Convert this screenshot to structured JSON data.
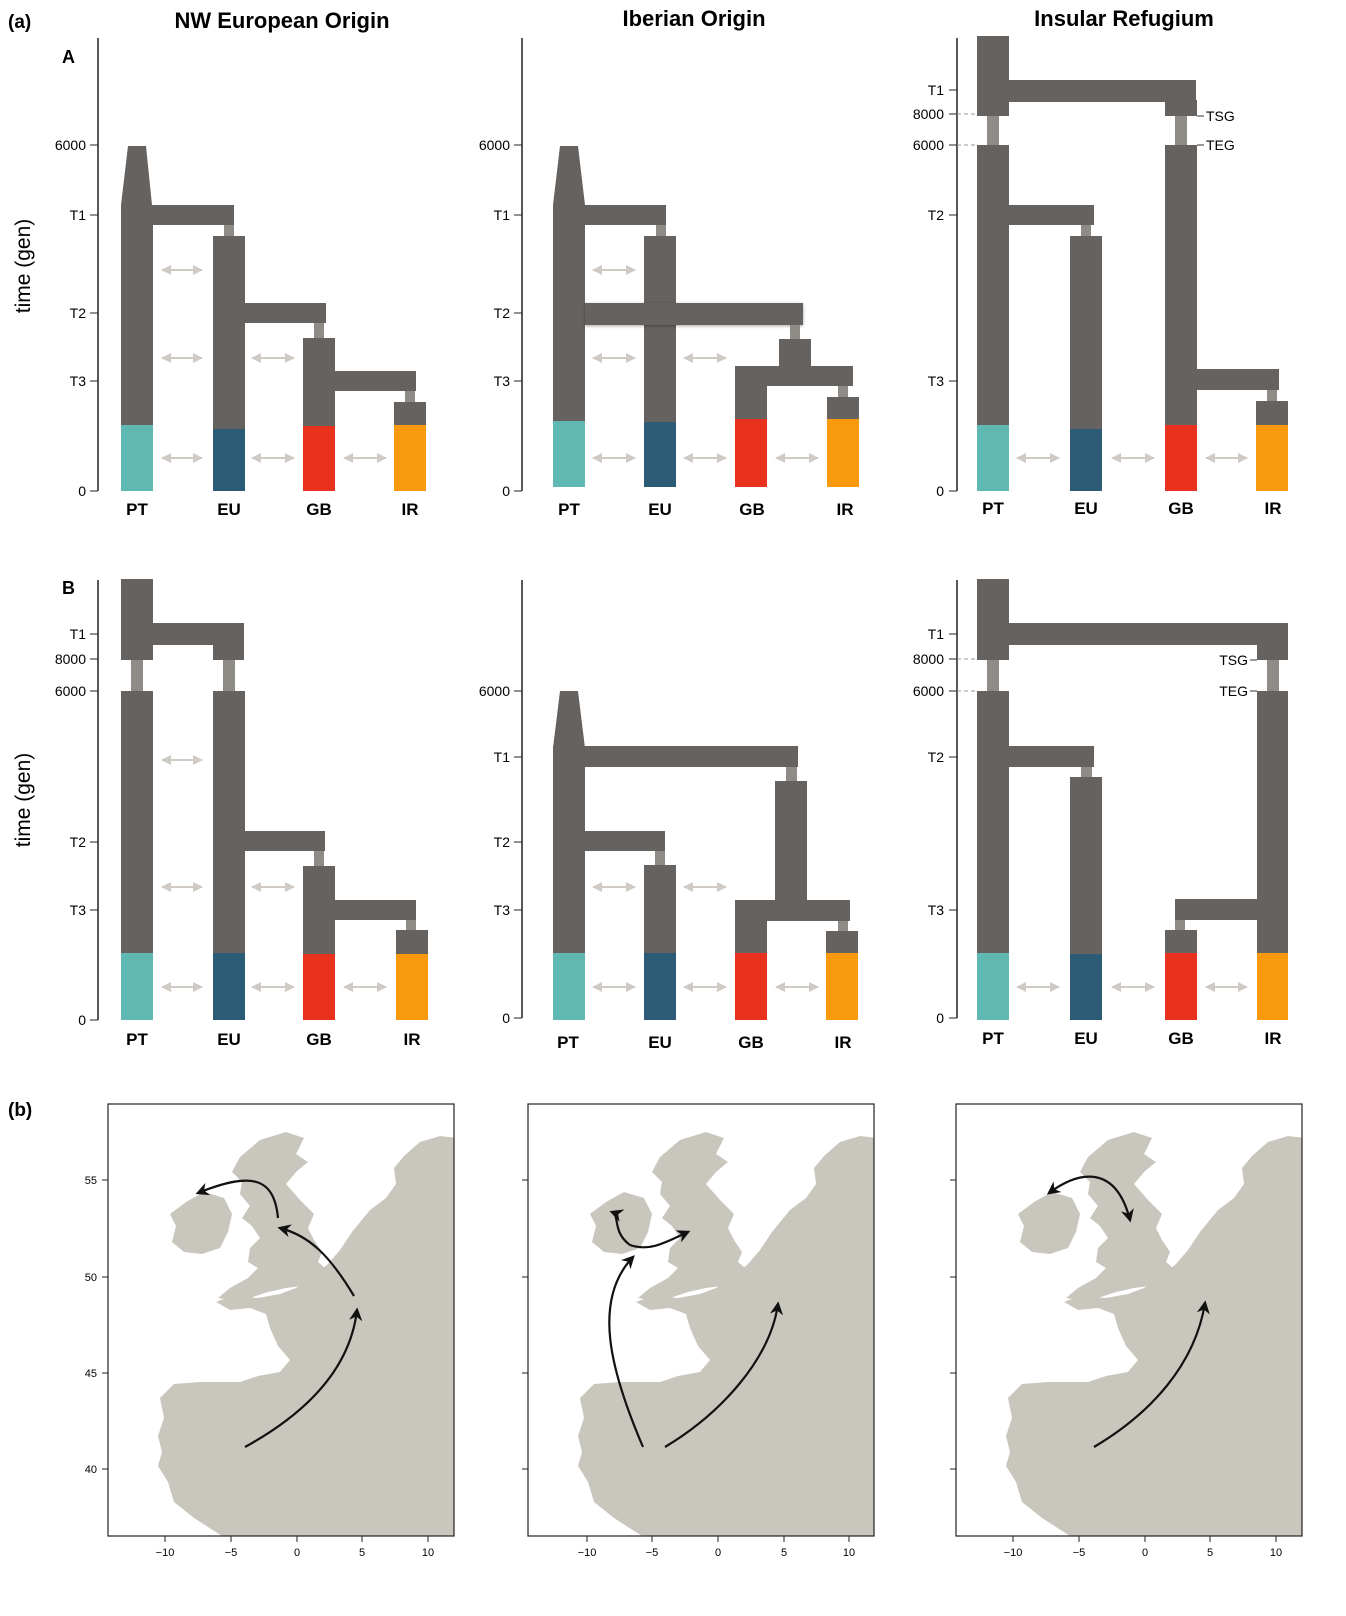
{
  "panel_labels": {
    "a": "(a)",
    "b": "(b)"
  },
  "columns": [
    "NW European Origin",
    "Iberian Origin",
    "Insular Refugium"
  ],
  "row_labels": [
    "A",
    "B"
  ],
  "y_axis_title": "time (gen)",
  "populations": [
    "PT",
    "EU",
    "GB",
    "IR"
  ],
  "population_colors": {
    "PT": "#5fb8b1",
    "EU": "#2c5c75",
    "GB": "#e8321d",
    "IR": "#f99a0e"
  },
  "branch_color": "#66625f",
  "connector_color": "#8f8b86",
  "migration_arrow_color": "#cfcac3",
  "tick_labels": {
    "A1": [
      "6000",
      "T1",
      "T2",
      "T3",
      "0"
    ],
    "A2": [
      "6000",
      "T1",
      "T2",
      "T3",
      "0"
    ],
    "A3": [
      "T1",
      "8000",
      "6000",
      "T2",
      "T3",
      "0"
    ],
    "B1": [
      "T1",
      "8000",
      "6000",
      "T2",
      "T3",
      "0"
    ],
    "B2": [
      "6000",
      "T1",
      "T2",
      "T3",
      "0"
    ],
    "B3": [
      "T1",
      "8000",
      "6000",
      "T2",
      "T3",
      "0"
    ]
  },
  "side_labels": {
    "TSG": "TSG",
    "TEG": "TEG"
  },
  "map": {
    "land_color": "#c8c6bd",
    "arrow_color": "#111111",
    "x_ticks": [
      "−10",
      "−5",
      "0",
      "5",
      "10"
    ],
    "y_ticks": [
      "55",
      "50",
      "45",
      "40"
    ]
  }
}
